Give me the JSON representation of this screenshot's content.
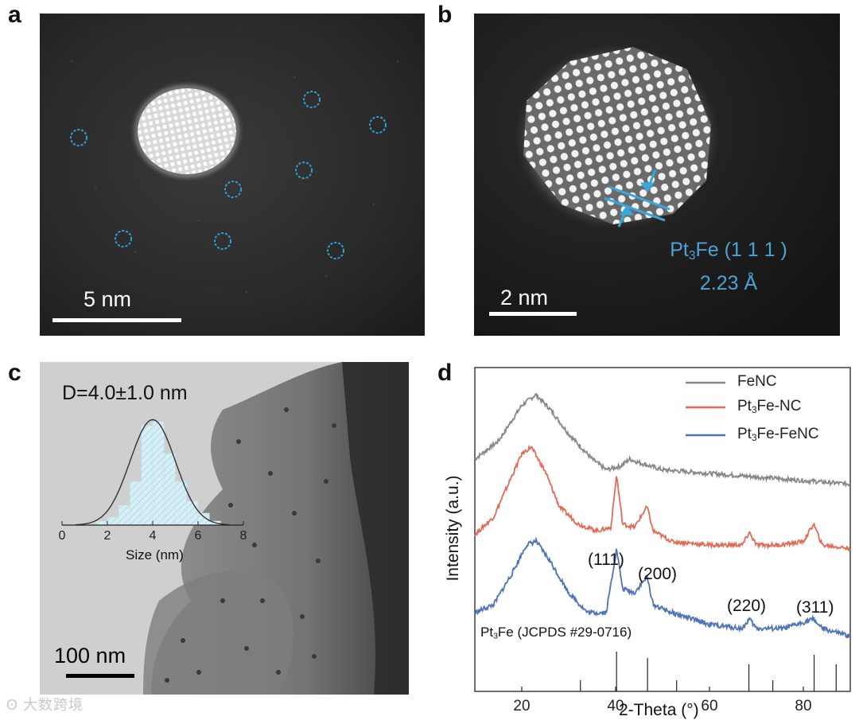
{
  "panels": {
    "a": {
      "letter": "a",
      "scale_bar": "5 nm"
    },
    "b": {
      "letter": "b",
      "scale_bar": "2 nm",
      "lattice_phase_pre": "Pt",
      "lattice_phase_sub": "3",
      "lattice_phase_post": "Fe (1 1 1 )",
      "d_spacing": "2.23 Å"
    },
    "c": {
      "letter": "c",
      "scale_bar": "100 nm",
      "diameter": "D=4.0±1.0 nm",
      "inset_xlabel": "Size (nm)",
      "inset_xticks": [
        "0",
        "2",
        "4",
        "6",
        "8"
      ]
    },
    "d": {
      "letter": "d",
      "ref_label_pre": "Pt",
      "ref_label_sub": "3",
      "ref_label_post": "Fe (JCPDS #29-0716)",
      "peaks": [
        "(111)",
        "(200)",
        "(220)",
        "(311)"
      ]
    }
  },
  "chart_data": [
    {
      "type": "bar",
      "title": "D=4.0±1.0 nm",
      "xlabel": "Size (nm)",
      "ylabel": "",
      "xlim": [
        0,
        8
      ],
      "xticks": [
        0,
        2,
        4,
        6,
        8
      ],
      "bin_width": 0.5,
      "x": [
        1.75,
        2.25,
        2.75,
        3.25,
        3.75,
        4.25,
        4.75,
        5.25,
        5.75,
        6.25,
        6.75
      ],
      "values": [
        1,
        2,
        5,
        11,
        25,
        26,
        18,
        11,
        6,
        3,
        1
      ],
      "fit": {
        "type": "gaussian",
        "mean": 4.0,
        "sd": 1.0
      }
    },
    {
      "type": "line",
      "xlabel": "2-Theta (°)",
      "ylabel": "Intensity (a.u.)",
      "xlim": [
        10,
        90
      ],
      "xticks": [
        20,
        40,
        60,
        80
      ],
      "legend": "top-right",
      "series": [
        {
          "name": "FeNC",
          "color": "#888888",
          "x": [
            10,
            15,
            20,
            23,
            26,
            30,
            35,
            38,
            41,
            43,
            45,
            50,
            60,
            70,
            80,
            90
          ],
          "values": [
            0.2,
            0.45,
            0.95,
            1.1,
            0.9,
            0.55,
            0.2,
            0.05,
            0.1,
            0.2,
            0.15,
            0.05,
            0.0,
            -0.05,
            -0.1,
            -0.15
          ]
        },
        {
          "name": "Pt3Fe-NC",
          "color": "#e26b57",
          "x": [
            10,
            14,
            18,
            20,
            22,
            25,
            28,
            32,
            36,
            39,
            40.2,
            41.5,
            44,
            46.7,
            48,
            52,
            60,
            67,
            68.5,
            70,
            75,
            80,
            82.2,
            84,
            90
          ],
          "values": [
            0.15,
            0.4,
            1.0,
            1.3,
            1.4,
            1.05,
            0.55,
            0.3,
            0.2,
            0.25,
            1.0,
            0.3,
            0.25,
            0.55,
            0.2,
            0.05,
            0.0,
            0.0,
            0.18,
            0.0,
            0.0,
            0.05,
            0.3,
            0.0,
            -0.05
          ]
        },
        {
          "name": "Pt3Fe-FeNC",
          "color": "#4f72b8",
          "x": [
            10,
            14,
            18,
            21,
            23,
            26,
            30,
            34,
            38,
            40.2,
            41.5,
            44,
            46.7,
            48,
            52,
            60,
            67,
            68.5,
            70,
            76,
            82.2,
            84,
            90
          ],
          "values": [
            0.2,
            0.3,
            0.7,
            1.05,
            1.1,
            0.85,
            0.45,
            0.2,
            0.2,
            1.0,
            0.5,
            0.45,
            0.65,
            0.3,
            0.2,
            0.05,
            0.0,
            0.12,
            0.0,
            0.0,
            0.12,
            0.0,
            -0.1
          ]
        }
      ],
      "reference": {
        "name": "Pt3Fe (JCPDS #29-0716)",
        "x": [
          32.5,
          40.2,
          46.8,
          53.0,
          68.4,
          73.5,
          82.3,
          87.0
        ],
        "intensity": [
          0.1,
          1.0,
          0.8,
          0.1,
          0.6,
          0.1,
          0.9,
          0.6
        ]
      },
      "annotations": [
        "(111)",
        "(200)",
        "(220)",
        "(311)"
      ]
    }
  ]
}
